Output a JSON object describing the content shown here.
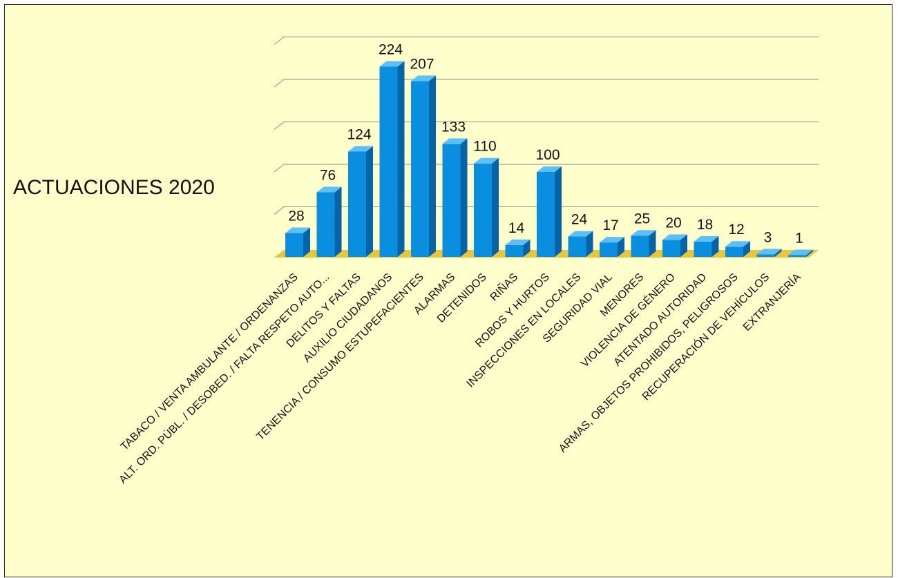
{
  "chart_data": {
    "type": "bar",
    "title": "ACTUACIONES 2020",
    "xlabel": "",
    "ylabel": "",
    "ylim": [
      0,
      250
    ],
    "grid": true,
    "legend": "none",
    "categories": [
      "TABACO / VENTA AMBULANTE / ORDENANZAS",
      "ALT. ORD. PÚBL. / DESOBED. / FALTA RESPETO AUTO...",
      "DELITOS Y FALTAS",
      "AUXILIO CIUDADANOS",
      "TENENCIA / CONSUMO ESTUPEFACIENTES",
      "ALARMAS",
      "DETENIDOS",
      "RIÑAS",
      "ROBOS Y HURTOS",
      "INSPECCIONES EN LOCALES",
      "SEGURIDAD VIAL",
      "MENORES",
      "VIOLENCIA DE GÉNERO",
      "ATENTADO AUTORIDAD",
      "ARMAS, OBJETOS PROHIBIDOS, PELIGROSOS",
      "RECUPERACIÓN DE VEHÍCULOS",
      "EXTRANJERÍA"
    ],
    "values": [
      28,
      76,
      124,
      224,
      207,
      133,
      110,
      14,
      100,
      24,
      17,
      25,
      20,
      18,
      12,
      3,
      1
    ],
    "colors": {
      "background": "#ffffcc",
      "bar_front": "#0a8ee0",
      "bar_side": "#0563a8",
      "bar_top": "#5cc0f7",
      "floor": "#e8c53a",
      "gridline": "#8a8a8a"
    }
  }
}
